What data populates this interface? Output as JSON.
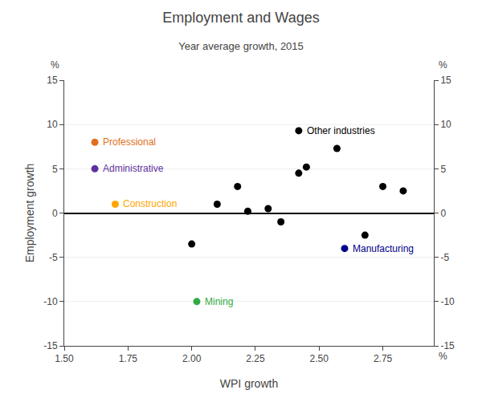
{
  "chart_data": {
    "type": "scatter",
    "title": "Employment and Wages",
    "subtitle": "Year average growth, 2015",
    "x_label": "WPI growth",
    "y_label": "Employment growth",
    "x_unit": "%",
    "y_unit": "%",
    "y2_unit": "%",
    "xlim": [
      1.5,
      2.95
    ],
    "ylim": [
      -15,
      15
    ],
    "y2lim": [
      -15,
      15
    ],
    "xticks": [
      {
        "value": 1.5,
        "label": "1.50"
      },
      1.75,
      {
        "value": 2,
        "label": "2.00"
      },
      2.25,
      {
        "value": 2.5,
        "label": "2.50"
      },
      2.75
    ],
    "yticks": [
      -15,
      -10,
      -5,
      0,
      5,
      10,
      15
    ],
    "y2ticks": [
      -15,
      -10,
      -5,
      0,
      5,
      10,
      15
    ],
    "grid": "y",
    "series": [
      {
        "name": "Other industries",
        "color": "#000000",
        "x": [
          2.0,
          2.1,
          2.18,
          2.22,
          2.3,
          2.35,
          2.42,
          2.45,
          2.42,
          2.57,
          2.68,
          2.75,
          2.83
        ],
        "values": [
          -3.5,
          1.0,
          3.0,
          0.2,
          0.5,
          -1.0,
          4.5,
          5.2,
          9.3,
          7.3,
          -2.5,
          3.0,
          2.5
        ]
      },
      {
        "name": "Professional",
        "color": "#E07020",
        "x": [
          1.62
        ],
        "values": [
          8.0
        ]
      },
      {
        "name": "Administrative",
        "color": "#6030A0",
        "x": [
          1.62
        ],
        "values": [
          5.0
        ]
      },
      {
        "name": "Construction",
        "color": "#FFA500",
        "x": [
          1.7
        ],
        "values": [
          1.0
        ]
      },
      {
        "name": "Mining",
        "color": "#33AA44",
        "x": [
          2.02
        ],
        "values": [
          -10.0
        ]
      },
      {
        "name": "Manufacturing",
        "color": "#00008B",
        "x": [
          2.6
        ],
        "values": [
          -4.0
        ]
      }
    ]
  }
}
